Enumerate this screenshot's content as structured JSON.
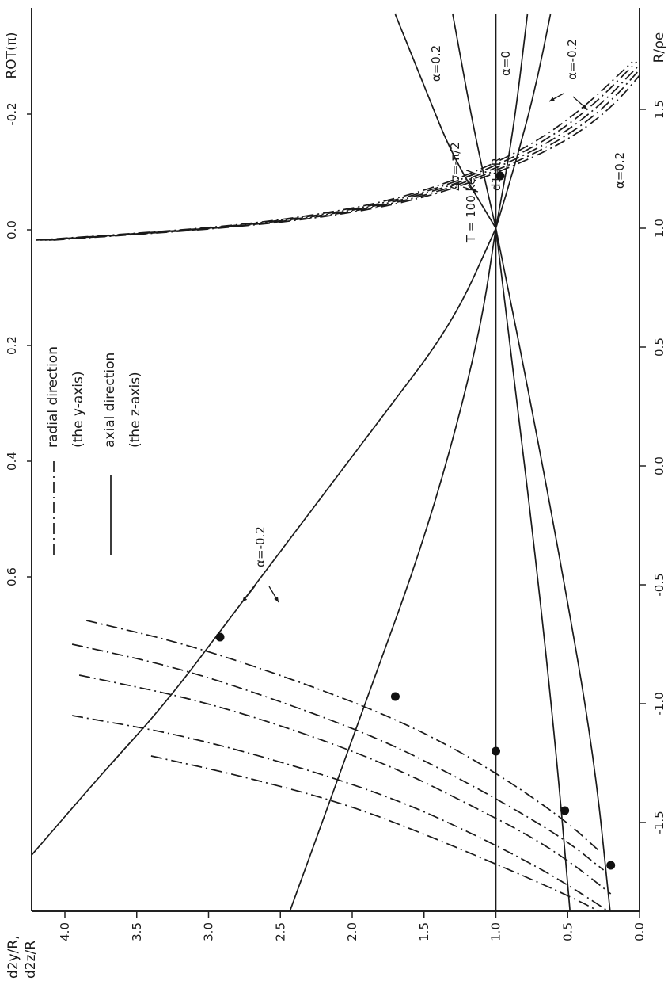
{
  "chart_data": {
    "type": "line",
    "orientation": "rotated-90",
    "y_axis": {
      "label_lines": [
        "d2y/R,",
        "d2z/R"
      ],
      "range": [
        0.0,
        4.4
      ],
      "ticks": [
        "0.0",
        "0.5",
        "1.0",
        "1.5",
        "2.0",
        "2.5",
        "3.0",
        "3.5",
        "4.0"
      ]
    },
    "x_axis_bottom": {
      "label": "R/ρe",
      "range": [
        -1.9,
        1.9
      ],
      "ticks": [
        "-1.5",
        "-1.0",
        "-0.5",
        "0.0",
        "0.5",
        "1.0",
        "1.5"
      ]
    },
    "x_axis_top": {
      "label": "ROT(π)",
      "ticks": [
        "0.6",
        "0.4",
        "0.2",
        "0.0",
        "-0.2",
        "-0.4",
        "-0.6"
      ]
    },
    "params": {
      "energy": "T = 100 keV",
      "distance": "d1=R"
    },
    "legend": {
      "placement": "middle-left",
      "entries": [
        {
          "style": "dash-dot",
          "line1": "radial direction",
          "line2": "(the y-axis)"
        },
        {
          "style": "solid",
          "line1": "axial direction",
          "line2": "(the z-axis)"
        }
      ]
    },
    "annotations": {
      "alpha_pos": "α=0.2",
      "alpha_zero": "α=0",
      "alpha_neg": "α=-0.2",
      "delta_sigma": "Δσ=-π/2",
      "alpha_neg_lower": "α=-0.2",
      "alpha_pos_radial": "α=0.2"
    },
    "series": [
      {
        "kind": "axial",
        "alpha": -0.2,
        "style": "solid",
        "x": [
          -1.65,
          -1.3,
          -1.0,
          -0.6,
          -0.2,
          0.2,
          0.6,
          1.0
        ],
        "y": [
          4.25,
          3.75,
          3.3,
          2.8,
          2.3,
          1.8,
          1.3,
          1.0
        ]
      },
      {
        "kind": "axial",
        "alpha": -0.1,
        "style": "solid",
        "x": [
          -1.9,
          -1.4,
          -0.9,
          -0.4,
          0.1,
          0.6,
          1.0
        ],
        "y": [
          2.45,
          2.15,
          1.85,
          1.55,
          1.3,
          1.1,
          1.0
        ]
      },
      {
        "kind": "axial",
        "alpha": 0.0,
        "style": "solid",
        "x": [
          -1.9,
          1.9
        ],
        "y": [
          1.0,
          1.0
        ]
      },
      {
        "kind": "axial",
        "alpha": 0.1,
        "style": "solid",
        "x": [
          -1.9,
          -1.2,
          -0.4,
          0.4,
          1.0
        ],
        "y": [
          0.48,
          0.58,
          0.72,
          0.88,
          1.0
        ]
      },
      {
        "kind": "axial",
        "alpha": 0.2,
        "style": "solid",
        "x": [
          -1.9,
          -1.2,
          -0.4,
          0.4,
          1.0
        ],
        "y": [
          0.2,
          0.32,
          0.55,
          0.8,
          1.0
        ]
      },
      {
        "kind": "axial-upper",
        "alpha": -0.2,
        "style": "solid",
        "x": [
          1.0,
          1.3,
          1.6,
          1.9
        ],
        "y": [
          1.0,
          1.3,
          1.5,
          1.7
        ]
      },
      {
        "kind": "axial-upper",
        "alpha": -0.1,
        "style": "solid",
        "x": [
          1.0,
          1.4,
          1.9
        ],
        "y": [
          1.0,
          1.15,
          1.3
        ]
      },
      {
        "kind": "axial-upper",
        "alpha": 0.1,
        "style": "solid",
        "x": [
          1.0,
          1.4,
          1.9
        ],
        "y": [
          1.0,
          0.88,
          0.78
        ]
      },
      {
        "kind": "axial-upper",
        "alpha": 0.2,
        "style": "solid",
        "x": [
          1.0,
          1.3,
          1.6,
          1.9
        ],
        "y": [
          1.0,
          0.85,
          0.72,
          0.62
        ]
      },
      {
        "kind": "radial",
        "alpha": -0.2,
        "style": "dash-dot",
        "x": [
          -0.65,
          -0.75,
          -0.9,
          -1.05,
          -1.2,
          -1.35,
          -1.5,
          -1.62
        ],
        "y": [
          3.85,
          3.15,
          2.4,
          1.75,
          1.25,
          0.85,
          0.5,
          0.28
        ]
      },
      {
        "kind": "radial",
        "alpha": -0.1,
        "style": "dash-dot",
        "x": [
          -0.75,
          -0.85,
          -1.0,
          -1.15,
          -1.3,
          -1.45,
          -1.58,
          -1.7
        ],
        "y": [
          3.95,
          3.2,
          2.45,
          1.8,
          1.3,
          0.85,
          0.5,
          0.25
        ]
      },
      {
        "kind": "radial",
        "alpha": 0.0,
        "style": "dash-dot",
        "x": [
          -0.88,
          -0.98,
          -1.12,
          -1.27,
          -1.42,
          -1.56,
          -1.68,
          -1.8
        ],
        "y": [
          3.9,
          3.1,
          2.35,
          1.7,
          1.2,
          0.75,
          0.45,
          0.2
        ]
      },
      {
        "kind": "radial",
        "alpha": 0.1,
        "style": "dash-dot",
        "x": [
          -1.05,
          -1.13,
          -1.26,
          -1.4,
          -1.55,
          -1.69,
          -1.8,
          -1.9
        ],
        "y": [
          3.95,
          3.2,
          2.4,
          1.7,
          1.15,
          0.7,
          0.4,
          0.15
        ]
      },
      {
        "kind": "radial",
        "alpha": 0.2,
        "style": "dash-dot",
        "x": [
          -1.22,
          -1.3,
          -1.42,
          -1.56,
          -1.7,
          -1.82,
          -1.9
        ],
        "y": [
          3.4,
          2.8,
          2.05,
          1.45,
          0.9,
          0.45,
          0.2
        ]
      },
      {
        "kind": "radial-upper",
        "alpha": -0.2,
        "style": "dash-dot",
        "x": [
          0.95,
          1.0,
          1.05,
          1.12,
          1.22,
          1.35,
          1.5,
          1.7
        ],
        "y": [
          4.2,
          3.0,
          2.3,
          1.7,
          1.2,
          0.75,
          0.4,
          0.05
        ]
      },
      {
        "kind": "radial-upper",
        "alpha": -0.1,
        "style": "dash-dot",
        "x": [
          0.95,
          1.0,
          1.05,
          1.12,
          1.22,
          1.35,
          1.5,
          1.7
        ],
        "y": [
          4.17,
          2.97,
          2.26,
          1.66,
          1.16,
          0.7,
          0.35,
          0.02
        ]
      },
      {
        "kind": "radial-upper",
        "alpha": 0.0,
        "style": "dash-dot",
        "x": [
          0.95,
          1.0,
          1.05,
          1.12,
          1.22,
          1.35,
          1.5,
          1.7
        ],
        "y": [
          4.14,
          2.94,
          2.22,
          1.62,
          1.12,
          0.65,
          0.3,
          -0.02
        ]
      },
      {
        "kind": "radial-upper",
        "alpha": 0.1,
        "style": "dash-dot",
        "x": [
          0.95,
          1.0,
          1.05,
          1.12,
          1.22,
          1.35,
          1.5,
          1.7
        ],
        "y": [
          4.11,
          2.91,
          2.18,
          1.58,
          1.08,
          0.6,
          0.25,
          -0.05
        ]
      },
      {
        "kind": "radial-upper",
        "alpha": 0.2,
        "style": "dash-dot",
        "x": [
          0.95,
          1.0,
          1.05,
          1.12,
          1.22,
          1.35,
          1.5,
          1.7
        ],
        "y": [
          4.08,
          2.88,
          2.14,
          1.54,
          1.04,
          0.55,
          0.2,
          -0.08
        ]
      }
    ],
    "markers": [
      {
        "x": -0.72,
        "y": 2.92
      },
      {
        "x": -0.97,
        "y": 1.7
      },
      {
        "x": -1.2,
        "y": 1.0
      },
      {
        "x": -1.45,
        "y": 0.52
      },
      {
        "x": -1.68,
        "y": 0.2
      },
      {
        "x": 1.22,
        "y": 0.97
      }
    ]
  }
}
